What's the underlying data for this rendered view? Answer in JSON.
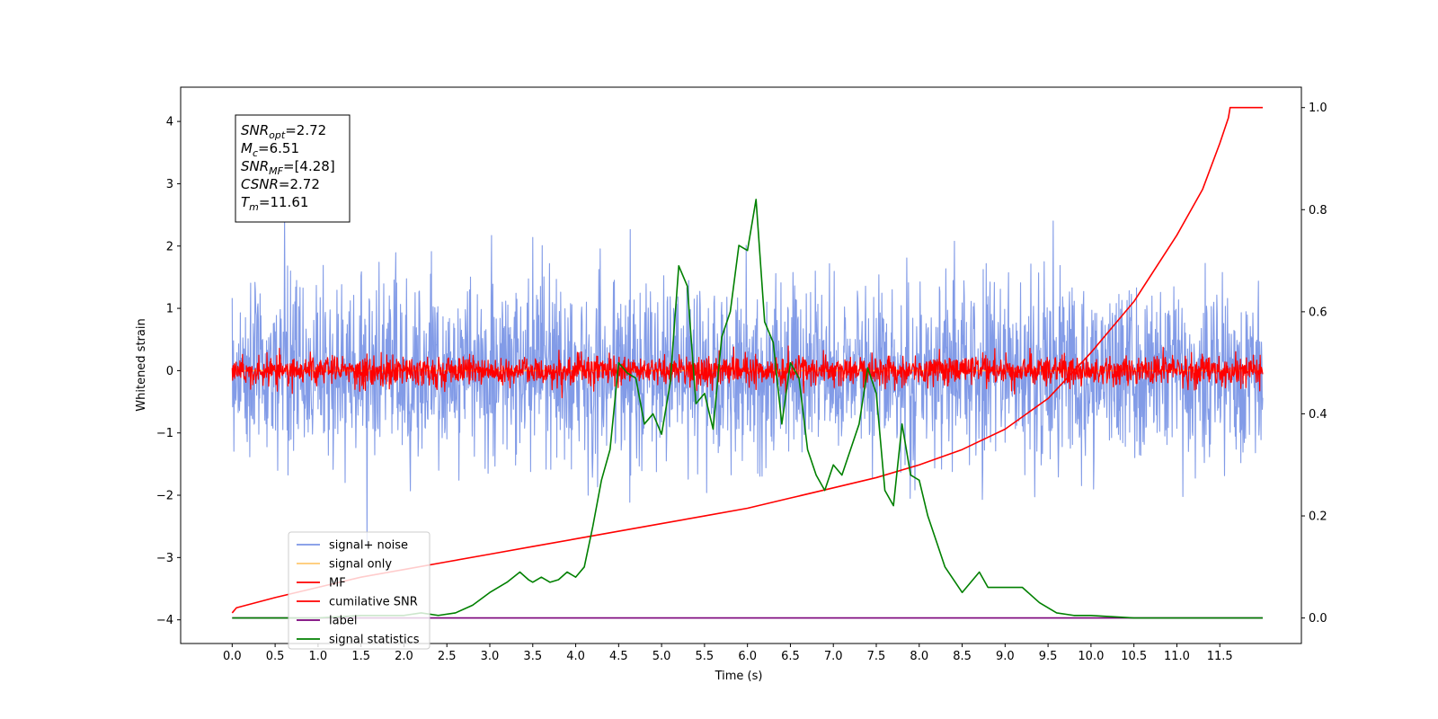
{
  "chart_data": {
    "type": "line",
    "xlabel": "Time (s)",
    "ylabel": "Whitened strain",
    "xlim": [
      -0.6,
      12.45
    ],
    "ylim_left": [
      -4.38,
      4.55
    ],
    "ylim_right": [
      -0.05,
      1.04
    ],
    "x_ticks": [
      "0.0",
      "0.5",
      "1.0",
      "1.5",
      "2.0",
      "2.5",
      "3.0",
      "3.5",
      "4.0",
      "4.5",
      "5.0",
      "5.5",
      "6.0",
      "6.5",
      "7.0",
      "7.5",
      "8.0",
      "8.5",
      "9.0",
      "9.5",
      "10.0",
      "10.5",
      "11.0",
      "11.5"
    ],
    "y_ticks_left": [
      "4",
      "3",
      "2",
      "1",
      "0",
      "−1",
      "−2",
      "−3",
      "−4"
    ],
    "y_ticks_right": [
      "1.0",
      "0.8",
      "0.6",
      "0.4",
      "0.2",
      "0.0"
    ],
    "legend_position": "lower-left",
    "colors": {
      "signal_noise": "#7b96e6",
      "signal_only": "#ffc870",
      "mf": "#ff0000",
      "cumulative_snr": "#ff0000",
      "label": "#7a007a",
      "signal_statistics": "#008000"
    },
    "series": [
      {
        "name": "signal+ noise",
        "axis": "left",
        "style": "noise",
        "amplitude": 1.3,
        "x_range": [
          0,
          12
        ]
      },
      {
        "name": "signal only",
        "axis": "left",
        "style": "flat",
        "value": 0,
        "x_range": [
          0,
          12
        ]
      },
      {
        "name": "MF",
        "axis": "left",
        "style": "noise",
        "amplitude": 0.22,
        "x_range": [
          0,
          12
        ]
      },
      {
        "name": "cumilative SNR",
        "axis": "right",
        "x": [
          0.0,
          0.05,
          0.5,
          1.0,
          1.5,
          2.0,
          2.5,
          3.0,
          3.5,
          4.0,
          4.5,
          5.0,
          5.5,
          6.0,
          6.5,
          7.0,
          7.5,
          8.0,
          8.5,
          9.0,
          9.5,
          10.0,
          10.5,
          11.0,
          11.3,
          11.5,
          11.6,
          11.62,
          12.0
        ],
        "y": [
          0.01,
          0.02,
          0.04,
          0.06,
          0.08,
          0.095,
          0.11,
          0.125,
          0.14,
          0.155,
          0.17,
          0.185,
          0.2,
          0.215,
          0.235,
          0.255,
          0.275,
          0.3,
          0.33,
          0.37,
          0.43,
          0.52,
          0.62,
          0.75,
          0.84,
          0.93,
          0.98,
          1.0,
          1.0
        ]
      },
      {
        "name": "label",
        "axis": "right",
        "x": [
          0.0,
          12.0
        ],
        "y": [
          0.0,
          0.0
        ]
      },
      {
        "name": "signal statistics",
        "axis": "right",
        "x": [
          0.0,
          0.5,
          1.0,
          1.5,
          2.0,
          2.2,
          2.4,
          2.6,
          2.8,
          3.0,
          3.2,
          3.35,
          3.45,
          3.5,
          3.6,
          3.7,
          3.8,
          3.9,
          4.0,
          4.1,
          4.2,
          4.3,
          4.4,
          4.5,
          4.6,
          4.7,
          4.8,
          4.9,
          5.0,
          5.1,
          5.2,
          5.3,
          5.4,
          5.5,
          5.6,
          5.7,
          5.8,
          5.9,
          6.0,
          6.1,
          6.2,
          6.3,
          6.4,
          6.5,
          6.6,
          6.7,
          6.8,
          6.9,
          7.0,
          7.1,
          7.2,
          7.3,
          7.4,
          7.5,
          7.6,
          7.7,
          7.8,
          7.9,
          8.0,
          8.1,
          8.2,
          8.3,
          8.5,
          8.7,
          8.8,
          9.0,
          9.2,
          9.4,
          9.6,
          9.8,
          10.0,
          10.5,
          11.0,
          11.5,
          12.0
        ],
        "y": [
          0.0,
          0.0,
          0.0,
          0.005,
          0.005,
          0.01,
          0.005,
          0.01,
          0.025,
          0.05,
          0.07,
          0.09,
          0.075,
          0.07,
          0.08,
          0.07,
          0.075,
          0.09,
          0.08,
          0.1,
          0.18,
          0.27,
          0.33,
          0.5,
          0.48,
          0.47,
          0.38,
          0.4,
          0.36,
          0.46,
          0.69,
          0.65,
          0.42,
          0.44,
          0.37,
          0.55,
          0.6,
          0.73,
          0.72,
          0.82,
          0.58,
          0.54,
          0.38,
          0.5,
          0.47,
          0.33,
          0.28,
          0.25,
          0.3,
          0.28,
          0.33,
          0.38,
          0.49,
          0.44,
          0.25,
          0.22,
          0.38,
          0.28,
          0.27,
          0.2,
          0.15,
          0.1,
          0.05,
          0.09,
          0.06,
          0.06,
          0.06,
          0.03,
          0.01,
          0.005,
          0.005,
          0.0,
          0.0,
          0.0,
          0.0
        ]
      }
    ],
    "annotation": {
      "lines": [
        {
          "base": "SNR",
          "sub": "opt",
          "rest": "=2.72"
        },
        {
          "base": "M",
          "sub": "c",
          "rest": "=6.51"
        },
        {
          "base": "SNR",
          "sub": "MF",
          "rest": "=[4.28]"
        },
        {
          "base": "CSNR",
          "sub": "",
          "rest": "=2.72"
        },
        {
          "base": "T",
          "sub": "m",
          "rest": "=11.61"
        }
      ]
    }
  }
}
